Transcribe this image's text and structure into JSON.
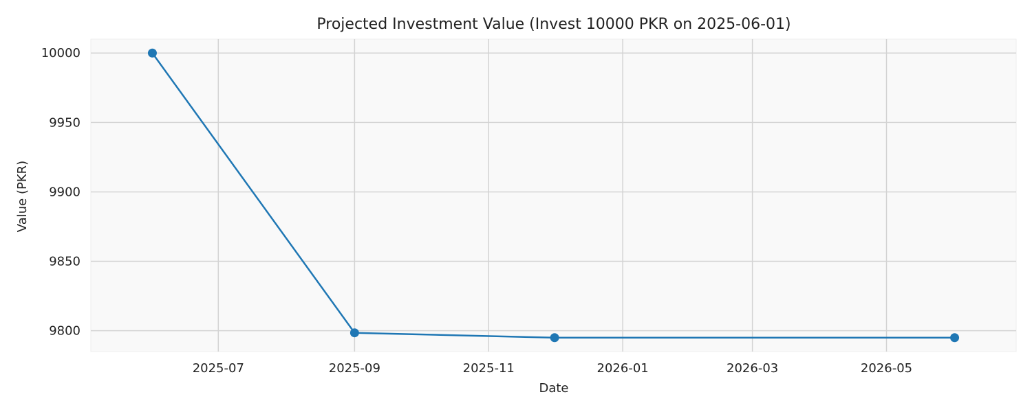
{
  "chart_data": {
    "type": "line",
    "title": "Projected Investment Value (Invest 10000 PKR on 2025-06-01)",
    "xlabel": "Date",
    "ylabel": "Value (PKR)",
    "x": [
      "2025-06-01",
      "2025-09-01",
      "2025-12-01",
      "2026-06-01"
    ],
    "series": [
      {
        "values": [
          10000,
          9798.5,
          9795,
          9795
        ],
        "color": "#1f77b4"
      }
    ],
    "xticks": [
      "2025-07-01",
      "2025-09-01",
      "2025-11-01",
      "2026-01-01",
      "2026-03-01",
      "2026-05-01"
    ],
    "xtick_labels": [
      "2025-07",
      "2025-09",
      "2025-11",
      "2026-01",
      "2026-03",
      "2026-05"
    ],
    "xlim": [
      "2025-05-04",
      "2026-06-29"
    ],
    "yticks": [
      9800,
      9850,
      9900,
      9950,
      10000
    ],
    "ylim": [
      9785,
      10010
    ],
    "grid": true,
    "marker": "circle",
    "plot_background": "#f9f9f9",
    "grid_color": "#d3d3d3"
  }
}
